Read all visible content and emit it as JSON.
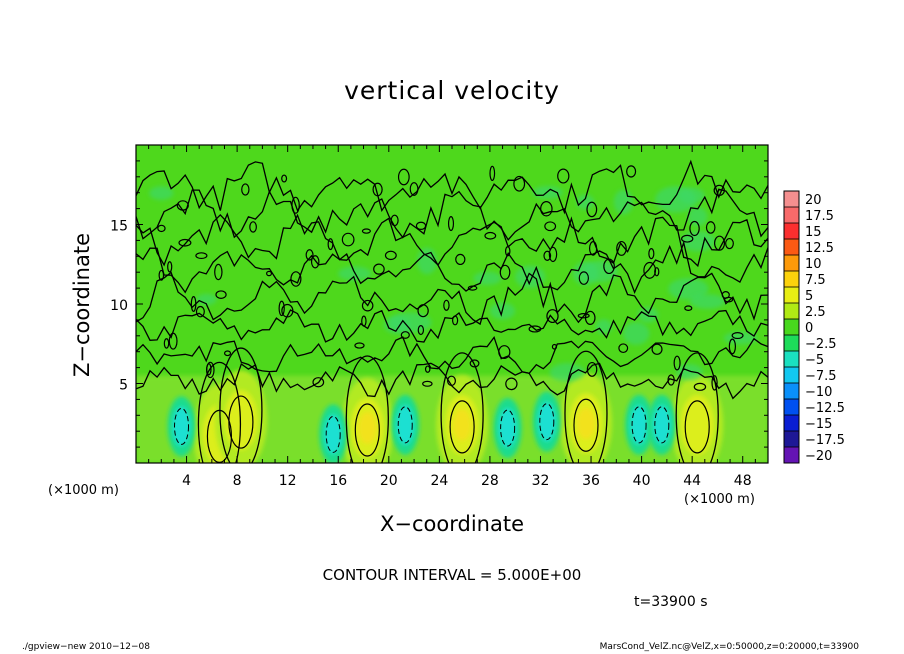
{
  "chart_data": {
    "type": "heatmap",
    "title": "vertical velocity",
    "xlabel": "X−coordinate",
    "ylabel": "Z−coordinate",
    "x_unit_label": "(×1000 m)",
    "z_unit_label": "(×1000 m)",
    "xlim": [
      0,
      50
    ],
    "ylim": [
      0,
      20
    ],
    "x_ticks": [
      4,
      8,
      12,
      16,
      20,
      24,
      28,
      32,
      36,
      40,
      44,
      48
    ],
    "y_ticks": [
      5,
      10,
      15
    ],
    "colorbar": {
      "labels": [
        "20",
        "17.5",
        "15",
        "12.5",
        "10",
        "7.5",
        "5",
        "2.5",
        "0",
        "−2.5",
        "−5",
        "−7.5",
        "−10",
        "−12.5",
        "−15",
        "−17.5",
        "−20"
      ],
      "colors": [
        "#f58f8f",
        "#f86a6a",
        "#fb2f2f",
        "#fb5a14",
        "#fd9a0a",
        "#fcd20c",
        "#e8ee14",
        "#b0ea14",
        "#48d81e",
        "#1ddc5a",
        "#1ae0c0",
        "#12c8f0",
        "#0a90fa",
        "#0050f0",
        "#0a1ed2",
        "#1e1896",
        "#6414b4"
      ]
    },
    "updrafts": [
      {
        "x": 6.6,
        "z": 1.8,
        "w": 5.5
      },
      {
        "x": 8.3,
        "z": 2.7,
        "w": 5
      },
      {
        "x": 18.3,
        "z": 2.2,
        "w": 7.5
      },
      {
        "x": 25.8,
        "z": 2.4,
        "w": 7.5
      },
      {
        "x": 35.6,
        "z": 2.5,
        "w": 7.5
      },
      {
        "x": 44.4,
        "z": 2.4,
        "w": 6.5
      }
    ],
    "downdrafts": [
      {
        "x": 3.6,
        "z": 2.3,
        "w": -6
      },
      {
        "x": 15.6,
        "z": 1.8,
        "w": -4
      },
      {
        "x": 21.3,
        "z": 2.4,
        "w": -5.5
      },
      {
        "x": 29.4,
        "z": 2.2,
        "w": -6
      },
      {
        "x": 32.5,
        "z": 2.6,
        "w": -4
      },
      {
        "x": 39.8,
        "z": 2.4,
        "w": -5
      },
      {
        "x": 41.6,
        "z": 2.4,
        "w": -5
      }
    ]
  },
  "contour_interval": "CONTOUR INTERVAL = 5.000E+00",
  "time_label": "t=33900 s",
  "footer_left": "./gpview−new   2010−12−08",
  "footer_right": "MarsCond_VelZ.nc@VelZ,x=0:50000,z=0:20000,t=33900"
}
